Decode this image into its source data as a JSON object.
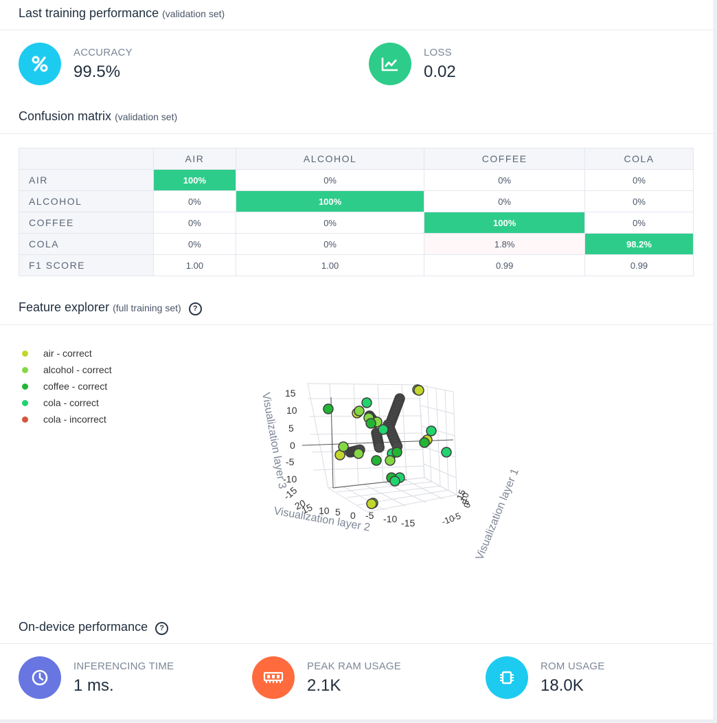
{
  "training": {
    "title": "Last training performance",
    "subtitle": "(validation set)",
    "accuracy": {
      "label": "ACCURACY",
      "value": "99.5%",
      "icon": "percent-icon",
      "color": "#1ecbf0"
    },
    "loss": {
      "label": "LOSS",
      "value": "0.02",
      "icon": "chart-line-icon",
      "color": "#2ecc8a"
    }
  },
  "confusion": {
    "title": "Confusion matrix",
    "subtitle": "(validation set)",
    "columns": [
      "AIR",
      "ALCOHOL",
      "COFFEE",
      "COLA"
    ],
    "rows": [
      {
        "label": "AIR",
        "cells": [
          "100%",
          "0%",
          "0%",
          "0%"
        ]
      },
      {
        "label": "ALCOHOL",
        "cells": [
          "0%",
          "100%",
          "0%",
          "0%"
        ]
      },
      {
        "label": "COFFEE",
        "cells": [
          "0%",
          "0%",
          "100%",
          "0%"
        ]
      },
      {
        "label": "COLA",
        "cells": [
          "0%",
          "0%",
          "1.8%",
          "98.2%"
        ]
      }
    ],
    "f1": {
      "label": "F1 SCORE",
      "cells": [
        "1.00",
        "1.00",
        "0.99",
        "0.99"
      ]
    },
    "highlight_color": "#2ecc8a"
  },
  "explorer": {
    "title": "Feature explorer",
    "subtitle": "(full training set)",
    "legend": [
      {
        "label": "air - correct",
        "color": "#c3d62b"
      },
      {
        "label": "alcohol - correct",
        "color": "#84d943"
      },
      {
        "label": "coffee - correct",
        "color": "#22b533"
      },
      {
        "label": "cola - correct",
        "color": "#22d36e"
      },
      {
        "label": "cola - incorrect",
        "color": "#d2573b"
      }
    ]
  },
  "chart_data": {
    "type": "scatter",
    "xlabel": "Visualization layer 1",
    "ylabel": "Visualization layer 2",
    "zlabel": "Visualization layer 3",
    "x_ticks": [
      "15",
      "10",
      "5",
      "0",
      "-5",
      "-10"
    ],
    "y_ticks": [
      "20",
      "15",
      "10",
      "5",
      "0",
      "-5",
      "-10",
      "-15"
    ],
    "z_ticks": [
      "15",
      "10",
      "5",
      "0",
      "-5",
      "-10",
      "-15"
    ],
    "series": [
      {
        "name": "air - correct",
        "color": "#c3d62b"
      },
      {
        "name": "alcohol - correct",
        "color": "#84d943"
      },
      {
        "name": "coffee - correct",
        "color": "#22b533"
      },
      {
        "name": "cola - correct",
        "color": "#22d36e"
      },
      {
        "name": "cola - incorrect",
        "color": "#d2573b"
      }
    ],
    "grid": true,
    "legend_position": "top-left"
  },
  "device": {
    "title": "On-device performance",
    "inferencing": {
      "label": "INFERENCING TIME",
      "value": "1 ms.",
      "icon": "clock-icon",
      "color": "#6776e0"
    },
    "ram": {
      "label": "PEAK RAM USAGE",
      "value": "2.1K",
      "icon": "ram-icon",
      "color": "#ff6b3d"
    },
    "rom": {
      "label": "ROM USAGE",
      "value": "18.0K",
      "icon": "chip-icon",
      "color": "#1ecbf0"
    }
  }
}
